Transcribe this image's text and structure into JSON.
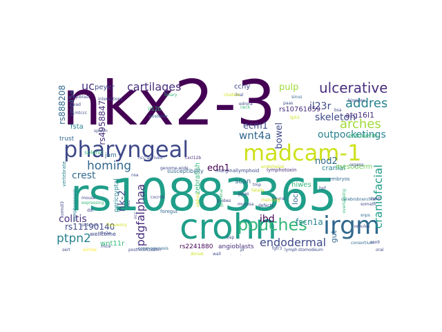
{
  "words": [
    {
      "text": "rs10883365",
      "color": "#1f9e89"
    },
    {
      "text": "nkx2-3",
      "color": "#440154"
    },
    {
      "text": "crohn",
      "color": "#1f9e89"
    },
    {
      "text": "pharyngeal",
      "color": "#3e4989"
    },
    {
      "text": "madcam-1",
      "color": "#cde11d"
    },
    {
      "text": "irgm",
      "color": "#31688e"
    },
    {
      "text": "pouches",
      "color": "#35b779"
    },
    {
      "text": "cartilages",
      "color": "#472d7b"
    },
    {
      "text": "ulcerative",
      "color": "#472d7b"
    },
    {
      "text": "addressin",
      "color": "#26828e"
    },
    {
      "text": "uc",
      "color": "#472d7b"
    },
    {
      "text": "arches",
      "color": "#a0da39"
    },
    {
      "text": "homing",
      "color": "#31688e"
    },
    {
      "text": "endodermal",
      "color": "#3e4989"
    },
    {
      "text": "craniofacial",
      "color": "#1f9e89"
    },
    {
      "text": "ptpn2",
      "color": "#26828e"
    },
    {
      "text": "skeleton",
      "color": "#3e4989"
    },
    {
      "text": "outpocketings",
      "color": "#26828e"
    },
    {
      "text": "colitis",
      "color": "#472d7b"
    },
    {
      "text": "pdgfalphaa",
      "color": "#472d7b"
    },
    {
      "text": "wnt4a",
      "color": "#31688e"
    },
    {
      "text": "crest",
      "color": "#31688e"
    },
    {
      "text": "rs4958847",
      "color": "#472d7b"
    },
    {
      "text": "rs888208",
      "color": "#31688e"
    },
    {
      "text": "il23r",
      "color": "#3e4989"
    },
    {
      "text": "ibd",
      "color": "#440154"
    },
    {
      "text": "edn1",
      "color": "#440154"
    },
    {
      "text": "ecm1",
      "color": "#3e4989"
    },
    {
      "text": "pulp",
      "color": "#a0da39"
    },
    {
      "text": "nod2",
      "color": "#31688e"
    },
    {
      "text": "fscn1a",
      "color": "#26828e"
    },
    {
      "text": "bowel",
      "color": "#3e4989"
    },
    {
      "text": "rs11190140",
      "color": "#3e4989"
    },
    {
      "text": "rs10761659",
      "color": "#472d7b"
    },
    {
      "text": "peyer",
      "color": "#3e4989"
    },
    {
      "text": "ccny",
      "color": "#3e4989"
    },
    {
      "text": "unc45a",
      "color": "#31688e"
    },
    {
      "text": "atg16l1",
      "color": "#472d7b"
    },
    {
      "text": "cranial",
      "color": "#26828e"
    },
    {
      "text": "nk-2",
      "color": "#3e4989"
    },
    {
      "text": "scan",
      "color": "#31688e"
    },
    {
      "text": "hiwes",
      "color": "#35b779"
    },
    {
      "text": "gut",
      "color": "#31688e"
    },
    {
      "text": "mesoderm",
      "color": "#6ece58"
    },
    {
      "text": "ectoderm",
      "color": "#35b779"
    },
    {
      "text": "wnt11r",
      "color": "#35b779"
    },
    {
      "text": "rs2241880",
      "color": "#440154"
    },
    {
      "text": "angioblasts",
      "color": "#472d7b"
    },
    {
      "text": "zebrafish",
      "color": "#35b779"
    },
    {
      "text": "fsta",
      "color": "#26828e"
    },
    {
      "text": "trust",
      "color": "#31688e"
    },
    {
      "text": "wellcome",
      "color": "#3e4989"
    },
    {
      "text": "jam",
      "color": "#31688e"
    },
    {
      "text": "loci",
      "color": "#31688e"
    },
    {
      "text": "il12b",
      "color": "#35b779"
    },
    {
      "text": "pericryptal",
      "color": "#26828e"
    },
    {
      "text": "splenic",
      "color": "#35b779"
    },
    {
      "text": "susceptibility",
      "color": "#31688e"
    },
    {
      "text": "marginallymphoid",
      "color": "#3e4989"
    },
    {
      "text": "lymphotoxin",
      "color": "#472d7b"
    },
    {
      "text": "embryos",
      "color": "#31688e"
    },
    {
      "text": "consortium",
      "color": "#31688e"
    },
    {
      "text": "vertebrate",
      "color": "#26828e"
    },
    {
      "text": "foregut",
      "color": "#31688e"
    },
    {
      "text": "neural",
      "color": "#3e4989"
    },
    {
      "text": "patches",
      "color": "#3e4989"
    },
    {
      "text": "cxcl12b",
      "color": "#472d7b"
    },
    {
      "text": "ncc-derived",
      "color": "#3e4989"
    },
    {
      "text": "sinus",
      "color": "#31688e"
    },
    {
      "text": "ileal",
      "color": "#3e4989"
    },
    {
      "text": "mtccc",
      "color": "#3e4989"
    },
    {
      "text": "edrora",
      "color": "#3e4989"
    },
    {
      "text": "spleen",
      "color": "#3e4989"
    },
    {
      "text": "posterior",
      "color": "#31688e"
    },
    {
      "text": "tp53",
      "color": "#cde11d"
    },
    {
      "text": "organs",
      "color": "#3e4989"
    },
    {
      "text": "venules",
      "color": "#3e4989"
    },
    {
      "text": "snps",
      "color": "#31688e"
    },
    {
      "text": "cerebrobranchial",
      "color": "#31688e"
    },
    {
      "text": "overlapping",
      "color": "#35b779"
    },
    {
      "text": "postfertilization",
      "color": "#3e4989"
    },
    {
      "text": "morphogenesis",
      "color": "#26828e"
    },
    {
      "text": "dlx2a",
      "color": "#3e4989"
    },
    {
      "text": "genome-wide",
      "color": "#3e4989"
    },
    {
      "text": "neck",
      "color": "#35b779"
    },
    {
      "text": "alphaa",
      "color": "#cde11d"
    },
    {
      "text": "gmas",
      "color": "#3e4989"
    },
    {
      "text": "probes",
      "color": "#3e4989"
    },
    {
      "text": "cxcr4b",
      "color": "#3e4989"
    },
    {
      "text": "arches",
      "color": "#fde725"
    },
    {
      "text": "organogenesis",
      "color": "#31688e"
    },
    {
      "text": "biliary",
      "color": "#35b779"
    },
    {
      "text": "bsa",
      "color": "#3e4989"
    },
    {
      "text": "fatally",
      "color": "#cde11d"
    },
    {
      "text": "germinal",
      "color": "#35b779"
    },
    {
      "text": "frequency",
      "color": "#cde11d"
    },
    {
      "text": "ddl",
      "color": "#3e4989"
    },
    {
      "text": "expressing",
      "color": "#35b779"
    },
    {
      "text": "stomodeum",
      "color": "#3e4989"
    },
    {
      "text": "epiblast",
      "color": "#3e4989"
    },
    {
      "text": "sox9",
      "color": "#3e4989"
    },
    {
      "text": "paas",
      "color": "#3e4989"
    },
    {
      "text": "fgfr3",
      "color": "#3e4989"
    },
    {
      "text": "endothelial",
      "color": "#cde11d"
    },
    {
      "text": "bap",
      "color": "#3e4989"
    },
    {
      "text": "tmp",
      "color": "#3e4989"
    },
    {
      "text": "pr",
      "color": "#3e4989"
    },
    {
      "text": "wall",
      "color": "#3e4989"
    },
    {
      "text": "nsa",
      "color": "#3e4989"
    },
    {
      "text": "maturing",
      "color": "#cde11d"
    },
    {
      "text": "zwelt",
      "color": "#3e4989"
    },
    {
      "text": "head",
      "color": "#3e4989"
    },
    {
      "text": "defects",
      "color": "#3e4989"
    },
    {
      "text": "mucosa",
      "color": "#3e4989"
    },
    {
      "text": "dorsal",
      "color": "#cde11d"
    },
    {
      "text": "somatic",
      "color": "#3e4989"
    },
    {
      "text": "mice",
      "color": "#3e4989"
    },
    {
      "text": "sert",
      "color": "#3e4989"
    },
    {
      "text": "lymph",
      "color": "#3e4989"
    },
    {
      "text": "clusters",
      "color": "#cde11d"
    },
    {
      "text": "mouse",
      "color": "#3e4989"
    },
    {
      "text": "oral",
      "color": "#3e4989"
    },
    {
      "text": "interactions",
      "color": "#3e4989"
    },
    {
      "text": "biopsies",
      "color": "#3e4989"
    },
    {
      "text": "hpf",
      "color": "#3e4989"
    },
    {
      "text": "ncc",
      "color": "#3e4989"
    },
    {
      "text": "ormdl3",
      "color": "#3e4989"
    },
    {
      "text": "ncc",
      "color": "#3e4989"
    },
    {
      "text": "ptger4",
      "color": "#3e4989"
    }
  ]
}
